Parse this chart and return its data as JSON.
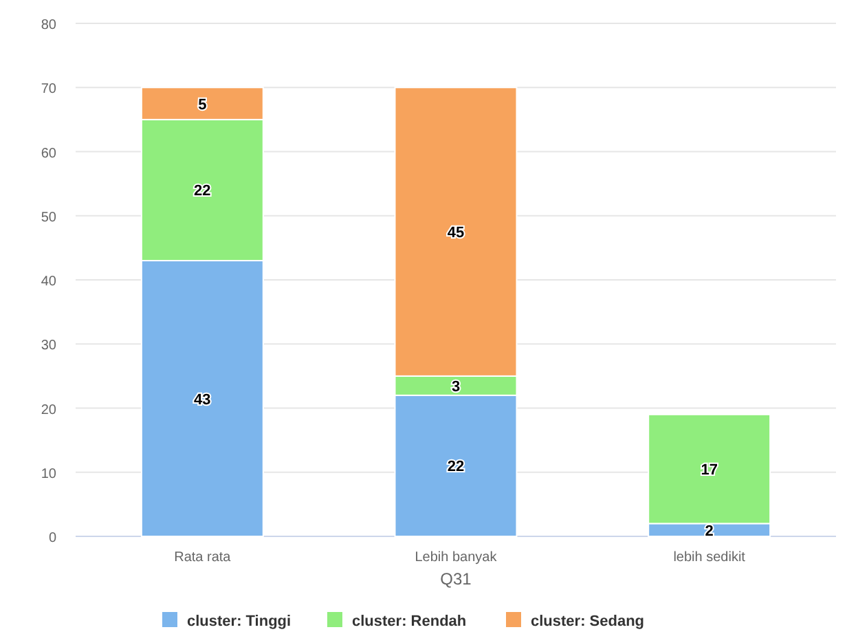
{
  "chart_data": {
    "type": "bar",
    "stacked": true,
    "xlabel": "Q31",
    "categories": [
      "Rata rata",
      "Lebih banyak",
      "lebih sedikit"
    ],
    "series": [
      {
        "name": "cluster: Tinggi",
        "color": "#7cb5ec",
        "values": [
          43,
          22,
          2
        ]
      },
      {
        "name": "cluster: Rendah",
        "color": "#90ed7d",
        "values": [
          22,
          3,
          17
        ]
      },
      {
        "name": "cluster: Sedang",
        "color": "#f7a35c",
        "values": [
          5,
          45,
          null
        ]
      }
    ],
    "ylim": [
      0,
      80
    ],
    "yticks": [
      0,
      10,
      20,
      30,
      40,
      50,
      60,
      70,
      80
    ],
    "grid": "y",
    "data_labels": true,
    "legend": "bottom"
  }
}
